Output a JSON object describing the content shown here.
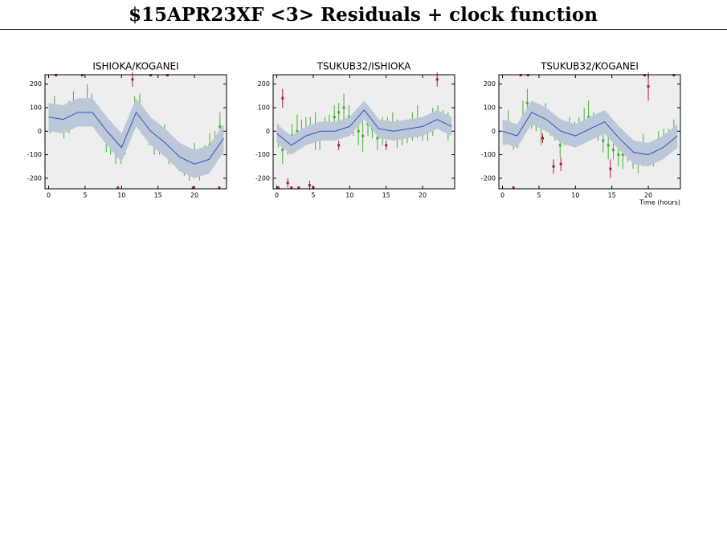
{
  "title": "$15APR23XF <3> Residuals + clock function",
  "chart_data": [
    {
      "type": "scatter",
      "title": "ISHIOKA/KOGANEI",
      "xlim": [
        -0.5,
        24.4
      ],
      "ylim": [
        -245,
        240
      ],
      "xticks": [
        0,
        5,
        10,
        15,
        20
      ],
      "yticks": [
        -200,
        -100,
        0,
        100,
        200
      ],
      "series": [
        {
          "color": "#44b030",
          "x": [
            0.2,
            0.8,
            1.5,
            2.1,
            2.8,
            3.4,
            4.0,
            4.6,
            5.3,
            5.9,
            6.6,
            7.2,
            7.9,
            8.5,
            9.2,
            9.9,
            10.5,
            11.2,
            11.8,
            12.5,
            13.1,
            13.8,
            14.5,
            15.2,
            15.9,
            16.5,
            17.2,
            17.9,
            18.6,
            19.3,
            20.0,
            20.7,
            21.4,
            22.1,
            22.8,
            23.5
          ],
          "values": [
            40,
            90,
            70,
            20,
            60,
            110,
            80,
            70,
            120,
            100,
            60,
            20,
            -40,
            -60,
            -80,
            -90,
            -60,
            20,
            80,
            110,
            40,
            -10,
            -40,
            -60,
            -20,
            -80,
            -90,
            -120,
            -130,
            -140,
            -100,
            -170,
            -120,
            -60,
            -40,
            20
          ],
          "errors": [
            50,
            60,
            40,
            50,
            70,
            60,
            50,
            40,
            80,
            60,
            50,
            40,
            50,
            40,
            60,
            50,
            40,
            60,
            70,
            50,
            40,
            50,
            60,
            40,
            50,
            60,
            40,
            50,
            60,
            70,
            50,
            40,
            60,
            50,
            40,
            60
          ]
        },
        {
          "color": "#b01840",
          "x": [
            1.0,
            4.6,
            9.5,
            11.5,
            14.0,
            16.3,
            19.8,
            23.4
          ],
          "values": [
            238,
            238,
            -240,
            220,
            238,
            238,
            -240,
            -240
          ],
          "errors": [
            0,
            0,
            0,
            30,
            0,
            0,
            0,
            0
          ]
        },
        {
          "kind": "line",
          "color": "#3050c0",
          "band_color": "#bcc8d8",
          "x": [
            0,
            2,
            4,
            6,
            8,
            10,
            12,
            14,
            16,
            18,
            20,
            22,
            24
          ],
          "values": [
            60,
            50,
            80,
            80,
            0,
            -70,
            80,
            0,
            -50,
            -110,
            -140,
            -120,
            -30
          ],
          "errors": [
            60,
            60,
            60,
            60,
            60,
            60,
            60,
            60,
            60,
            60,
            60,
            60,
            60
          ]
        }
      ]
    },
    {
      "type": "scatter",
      "title": "TSUKUB32/ISHIOKA",
      "xlim": [
        -0.5,
        24.4
      ],
      "ylim": [
        -245,
        240
      ],
      "xticks": [
        0,
        5,
        10,
        15,
        20
      ],
      "yticks": [
        -200,
        -100,
        0,
        100,
        200
      ],
      "series": [
        {
          "color": "#44b030",
          "x": [
            0.2,
            0.8,
            1.5,
            2.1,
            2.8,
            3.4,
            4.0,
            4.6,
            5.3,
            5.9,
            6.6,
            7.2,
            7.9,
            8.5,
            9.2,
            9.9,
            10.5,
            11.2,
            11.8,
            12.5,
            13.1,
            13.8,
            14.5,
            15.2,
            15.9,
            16.5,
            17.2,
            17.9,
            18.6,
            19.3,
            20.0,
            20.7,
            21.4,
            22.1,
            22.8,
            23.5
          ],
          "values": [
            -20,
            -80,
            -60,
            -20,
            0,
            -10,
            10,
            20,
            0,
            -20,
            10,
            30,
            60,
            80,
            100,
            60,
            20,
            0,
            -20,
            30,
            10,
            -30,
            0,
            20,
            30,
            -10,
            -20,
            0,
            20,
            40,
            10,
            0,
            40,
            60,
            50,
            20
          ],
          "errors": [
            50,
            60,
            40,
            50,
            70,
            60,
            50,
            40,
            80,
            60,
            50,
            40,
            50,
            40,
            60,
            50,
            40,
            60,
            70,
            50,
            40,
            50,
            60,
            40,
            50,
            60,
            40,
            50,
            60,
            70,
            50,
            40,
            60,
            50,
            40,
            60
          ]
        },
        {
          "color": "#b01840",
          "x": [
            0.2,
            0.8,
            1.5,
            2.0,
            3.0,
            4.5,
            5.0,
            8.5,
            15.0,
            22.0
          ],
          "values": [
            -240,
            140,
            -220,
            -240,
            -240,
            -230,
            -240,
            -60,
            -60,
            220
          ],
          "errors": [
            0,
            40,
            20,
            0,
            0,
            20,
            0,
            20,
            20,
            30
          ]
        },
        {
          "kind": "line",
          "color": "#3050c0",
          "band_color": "#bcc8d8",
          "x": [
            0,
            2,
            4,
            6,
            8,
            10,
            12,
            14,
            16,
            18,
            20,
            22,
            24
          ],
          "values": [
            -10,
            -60,
            -20,
            0,
            0,
            20,
            90,
            10,
            0,
            10,
            20,
            50,
            20
          ],
          "errors": [
            40,
            40,
            40,
            40,
            40,
            40,
            40,
            40,
            40,
            40,
            40,
            40,
            40
          ]
        }
      ]
    },
    {
      "type": "scatter",
      "title": "TSUKUB32/KOGANEI",
      "xlabel": "Time (hours)",
      "xlim": [
        -0.5,
        24.4
      ],
      "ylim": [
        -245,
        240
      ],
      "xticks": [
        0,
        5,
        10,
        15,
        20
      ],
      "yticks": [
        -200,
        -100,
        0,
        100,
        200
      ],
      "series": [
        {
          "color": "#44b030",
          "x": [
            0.2,
            0.8,
            1.5,
            2.1,
            2.8,
            3.4,
            4.0,
            4.6,
            5.3,
            5.9,
            6.6,
            7.2,
            7.9,
            8.5,
            9.2,
            9.9,
            10.5,
            11.2,
            11.8,
            12.5,
            13.1,
            13.8,
            14.5,
            15.2,
            15.9,
            16.5,
            17.2,
            17.9,
            18.6,
            19.3,
            20.0,
            20.7,
            21.4,
            22.1,
            22.8,
            23.5
          ],
          "values": [
            -10,
            30,
            -40,
            -20,
            60,
            120,
            60,
            40,
            20,
            60,
            30,
            0,
            -60,
            -20,
            0,
            -10,
            20,
            40,
            60,
            30,
            0,
            -40,
            -60,
            -80,
            -100,
            -100,
            -90,
            -110,
            -120,
            -80,
            -100,
            -110,
            -60,
            -40,
            -30,
            -10
          ],
          "errors": [
            50,
            60,
            40,
            50,
            70,
            60,
            50,
            40,
            80,
            60,
            50,
            40,
            50,
            40,
            60,
            50,
            40,
            60,
            70,
            50,
            40,
            50,
            60,
            40,
            50,
            60,
            40,
            50,
            60,
            70,
            50,
            40,
            60,
            50,
            40,
            60
          ]
        },
        {
          "color": "#b01840",
          "x": [
            1.5,
            2.5,
            3.5,
            5.5,
            7.0,
            8.0,
            14.8,
            19.5,
            20.0,
            23.5
          ],
          "values": [
            -240,
            238,
            238,
            -30,
            -150,
            -140,
            -160,
            238,
            190,
            238
          ],
          "errors": [
            0,
            0,
            0,
            20,
            30,
            30,
            40,
            0,
            60,
            0
          ]
        },
        {
          "kind": "line",
          "color": "#3050c0",
          "band_color": "#bcc8d8",
          "x": [
            0,
            2,
            4,
            6,
            8,
            10,
            12,
            14,
            16,
            18,
            20,
            22,
            24
          ],
          "values": [
            0,
            -20,
            80,
            50,
            0,
            -20,
            10,
            40,
            -30,
            -90,
            -100,
            -70,
            -20
          ],
          "errors": [
            50,
            50,
            50,
            50,
            50,
            50,
            50,
            50,
            50,
            50,
            50,
            50,
            50
          ]
        }
      ]
    }
  ]
}
